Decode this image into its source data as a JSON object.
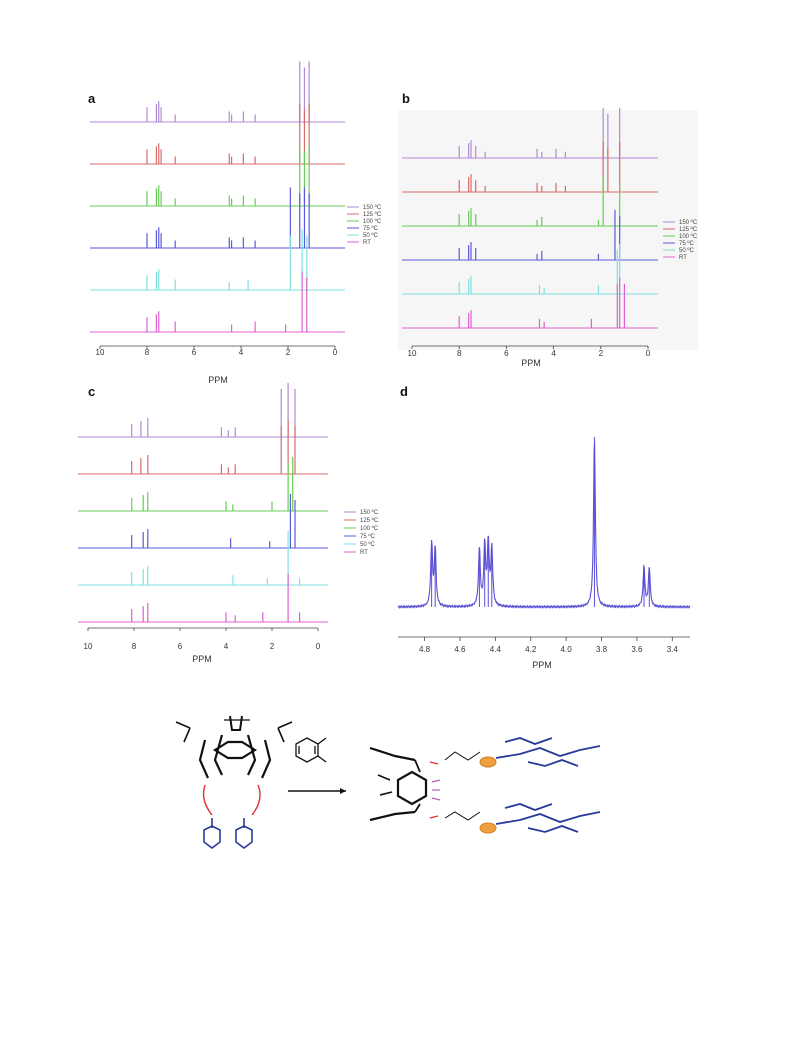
{
  "legend_labels": [
    "150 ºC",
    "125 ºC",
    "100 ºC",
    "75 ºC",
    "50 ºC",
    "RT"
  ],
  "series_colors": [
    "#b28ad6",
    "#d96a6a",
    "#66cc55",
    "#5a5ad8",
    "#7fe0e0",
    "#e060d0"
  ],
  "chart_data": [
    {
      "panel": "a",
      "type": "line",
      "xlabel": "PPM",
      "xlim": [
        10,
        0
      ],
      "x_ticks": [
        "10",
        "8",
        "6",
        "4",
        "2",
        "0"
      ],
      "legend_placement": "right",
      "series": [
        {
          "name": "150 ºC",
          "peaks_ppm": [
            8.0,
            7.6,
            7.5,
            7.4,
            6.8,
            4.5,
            4.4,
            3.9,
            3.4,
            1.5,
            1.3,
            1.1
          ]
        },
        {
          "name": "125 ºC",
          "peaks_ppm": [
            8.0,
            7.6,
            7.5,
            7.4,
            6.8,
            4.5,
            4.4,
            3.9,
            3.4,
            1.5,
            1.3,
            1.1
          ]
        },
        {
          "name": "100 ºC",
          "peaks_ppm": [
            8.0,
            7.6,
            7.5,
            7.4,
            6.8,
            4.5,
            4.4,
            3.9,
            3.4,
            1.5,
            1.3,
            1.1
          ]
        },
        {
          "name": "75 ºC",
          "peaks_ppm": [
            8.0,
            7.6,
            7.5,
            7.4,
            6.8,
            4.5,
            4.4,
            3.9,
            3.4,
            1.9,
            1.5,
            1.3,
            1.1
          ]
        },
        {
          "name": "50 ºC",
          "peaks_ppm": [
            8.0,
            7.6,
            7.5,
            6.8,
            4.5,
            3.7,
            1.9,
            1.4,
            1.2
          ]
        },
        {
          "name": "RT",
          "peaks_ppm": [
            8.0,
            7.6,
            7.5,
            6.8,
            4.4,
            3.4,
            2.1,
            1.4,
            1.2
          ]
        }
      ]
    },
    {
      "panel": "b",
      "type": "line",
      "xlabel": "PPM",
      "xlim": [
        10,
        0
      ],
      "x_ticks": [
        "10",
        "8",
        "6",
        "4",
        "2",
        "0"
      ],
      "legend_placement": "right",
      "series": [
        {
          "name": "150 ºC",
          "peaks_ppm": [
            8.0,
            7.6,
            7.5,
            7.3,
            6.9,
            4.7,
            4.5,
            3.9,
            3.5,
            1.9,
            1.7,
            1.2
          ]
        },
        {
          "name": "125 ºC",
          "peaks_ppm": [
            8.0,
            7.6,
            7.5,
            7.3,
            6.9,
            4.7,
            4.5,
            3.9,
            3.5,
            1.9,
            1.7,
            1.2
          ]
        },
        {
          "name": "100 ºC",
          "peaks_ppm": [
            8.0,
            7.6,
            7.5,
            7.3,
            4.7,
            4.5,
            2.1,
            1.9,
            1.2
          ]
        },
        {
          "name": "75 ºC",
          "peaks_ppm": [
            8.0,
            7.6,
            7.5,
            7.3,
            4.7,
            4.5,
            2.1,
            1.4,
            1.2
          ]
        },
        {
          "name": "50 ºC",
          "peaks_ppm": [
            8.0,
            7.6,
            7.5,
            4.6,
            4.4,
            2.1,
            1.3,
            1.2
          ]
        },
        {
          "name": "RT",
          "peaks_ppm": [
            8.0,
            7.6,
            7.5,
            4.6,
            4.4,
            2.4,
            1.3,
            1.2,
            1.0
          ]
        }
      ]
    },
    {
      "panel": "c",
      "type": "line",
      "xlabel": "PPM",
      "xlim": [
        10,
        0
      ],
      "x_ticks": [
        "10",
        "8",
        "6",
        "4",
        "2",
        "0"
      ],
      "legend_placement": "right",
      "series": [
        {
          "name": "150 ºC",
          "peaks_ppm": [
            8.1,
            7.7,
            7.4,
            4.2,
            3.9,
            3.6,
            1.6,
            1.3,
            1.0
          ]
        },
        {
          "name": "125 ºC",
          "peaks_ppm": [
            8.1,
            7.7,
            7.4,
            4.2,
            3.9,
            3.6,
            1.6,
            1.3,
            1.0
          ]
        },
        {
          "name": "100 ºC",
          "peaks_ppm": [
            8.1,
            7.6,
            7.4,
            4.0,
            3.7,
            2.0,
            1.3,
            1.1
          ]
        },
        {
          "name": "75 ºC",
          "peaks_ppm": [
            8.1,
            7.6,
            7.4,
            3.8,
            2.1,
            1.2,
            1.0
          ]
        },
        {
          "name": "50 ºC",
          "peaks_ppm": [
            8.1,
            7.6,
            7.4,
            3.7,
            2.2,
            1.3,
            0.8
          ]
        },
        {
          "name": "RT",
          "peaks_ppm": [
            8.1,
            7.6,
            7.4,
            4.0,
            3.6,
            2.4,
            1.3,
            0.8
          ]
        }
      ]
    },
    {
      "panel": "d",
      "type": "line",
      "xlabel": "PPM",
      "xlim": [
        4.95,
        3.3
      ],
      "x_ticks": [
        "4.8",
        "4.6",
        "4.4",
        "4.2",
        "4.0",
        "3.8",
        "3.6",
        "3.4"
      ],
      "series": [
        {
          "peaks_ppm": [
            4.76,
            4.74,
            4.49,
            4.46,
            4.44,
            4.42,
            3.84,
            3.56,
            3.53
          ],
          "intensity": [
            0.37,
            0.34,
            0.34,
            0.36,
            0.37,
            0.34,
            1.0,
            0.24,
            0.23
          ]
        }
      ]
    }
  ]
}
